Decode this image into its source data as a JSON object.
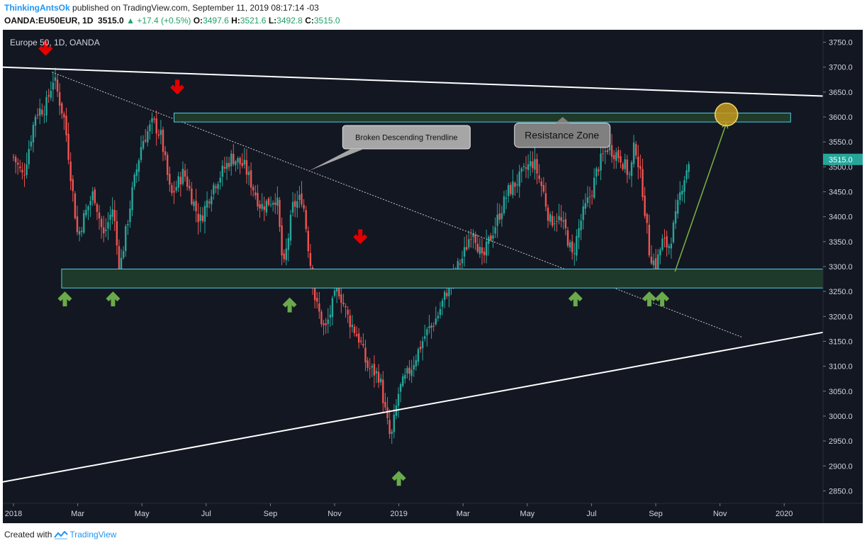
{
  "header": {
    "publisher": "ThinkingAntsOk",
    "published_text": "published on TradingView.com, September 11, 2019 08:17:14 -03",
    "symbol": "OANDA:EU50EUR, 1D",
    "last": "3515.0",
    "change": "+17.4 (+0.5%)",
    "o_label": "O:",
    "o_value": "3497.6",
    "h_label": "H:",
    "h_value": "3521.6",
    "l_label": "L:",
    "l_value": "3492.8",
    "c_label": "C:",
    "c_value": "3515.0"
  },
  "footer": {
    "created_text": "Created with",
    "brand": "TradingView"
  },
  "colors": {
    "up": "#26a69a",
    "down": "#ef5350",
    "background": "#131722",
    "zone": "#1e3a2a",
    "zone_border": "#4dd0e1",
    "arrow_up": "#6aaa4a",
    "arrow_down": "#e00000"
  },
  "chart_data": {
    "type": "candlestick",
    "title": "Europe 50, 1D, OANDA",
    "ylim": [
      2825,
      3775
    ],
    "y_ticks": [
      "2850.0",
      "2900.0",
      "2950.0",
      "3000.0",
      "3050.0",
      "3100.0",
      "3150.0",
      "3200.0",
      "3250.0",
      "3300.0",
      "3350.0",
      "3400.0",
      "3450.0",
      "3500.0",
      "3550.0",
      "3600.0",
      "3650.0",
      "3700.0",
      "3750.0"
    ],
    "x_ticks": [
      "2018",
      "Mar",
      "May",
      "Jul",
      "Sep",
      "Nov",
      "2019",
      "Mar",
      "May",
      "Jul",
      "Sep",
      "Nov",
      "2020"
    ],
    "x_tick_months": [
      0,
      2,
      4,
      6,
      8,
      10,
      12,
      14,
      16,
      18,
      20,
      22,
      24
    ],
    "last_price_label": "3515.0",
    "price_path": [
      [
        0.0,
        3520
      ],
      [
        0.3,
        3480
      ],
      [
        0.7,
        3610
      ],
      [
        1.0,
        3620
      ],
      [
        1.25,
        3680
      ],
      [
        1.6,
        3590
      ],
      [
        2.0,
        3360
      ],
      [
        2.2,
        3400
      ],
      [
        2.5,
        3450
      ],
      [
        2.8,
        3360
      ],
      [
        3.1,
        3420
      ],
      [
        3.3,
        3290
      ],
      [
        3.7,
        3450
      ],
      [
        4.0,
        3550
      ],
      [
        4.35,
        3590
      ],
      [
        4.6,
        3560
      ],
      [
        4.9,
        3440
      ],
      [
        5.3,
        3490
      ],
      [
        5.8,
        3390
      ],
      [
        6.2,
        3460
      ],
      [
        6.8,
        3520
      ],
      [
        7.2,
        3500
      ],
      [
        7.7,
        3420
      ],
      [
        8.2,
        3440
      ],
      [
        8.4,
        3290
      ],
      [
        8.7,
        3420
      ],
      [
        9.0,
        3440
      ],
      [
        9.2,
        3330
      ],
      [
        9.4,
        3230
      ],
      [
        9.7,
        3170
      ],
      [
        10.1,
        3260
      ],
      [
        10.4,
        3200
      ],
      [
        10.8,
        3150
      ],
      [
        11.0,
        3100
      ],
      [
        11.4,
        3080
      ],
      [
        11.6,
        3000
      ],
      [
        11.75,
        2950
      ],
      [
        12.0,
        3050
      ],
      [
        12.4,
        3100
      ],
      [
        12.8,
        3160
      ],
      [
        13.2,
        3200
      ],
      [
        13.6,
        3270
      ],
      [
        14.0,
        3320
      ],
      [
        14.3,
        3380
      ],
      [
        14.6,
        3310
      ],
      [
        14.8,
        3350
      ],
      [
        15.1,
        3400
      ],
      [
        15.4,
        3450
      ],
      [
        15.8,
        3480
      ],
      [
        16.0,
        3500
      ],
      [
        16.2,
        3510
      ],
      [
        16.5,
        3450
      ],
      [
        16.7,
        3390
      ],
      [
        16.95,
        3400
      ],
      [
        17.2,
        3370
      ],
      [
        17.4,
        3320
      ],
      [
        17.7,
        3400
      ],
      [
        18.0,
        3450
      ],
      [
        18.2,
        3500
      ],
      [
        18.5,
        3540
      ],
      [
        18.9,
        3520
      ],
      [
        19.2,
        3480
      ],
      [
        19.35,
        3550
      ],
      [
        19.6,
        3450
      ],
      [
        19.8,
        3330
      ],
      [
        20.0,
        3300
      ],
      [
        20.2,
        3350
      ],
      [
        20.4,
        3340
      ],
      [
        20.6,
        3390
      ],
      [
        20.8,
        3460
      ],
      [
        21.05,
        3515
      ]
    ]
  },
  "annotations": {
    "trendline_label": "Broken Descending Trendline",
    "resistance_label": "Resistance Zone"
  }
}
